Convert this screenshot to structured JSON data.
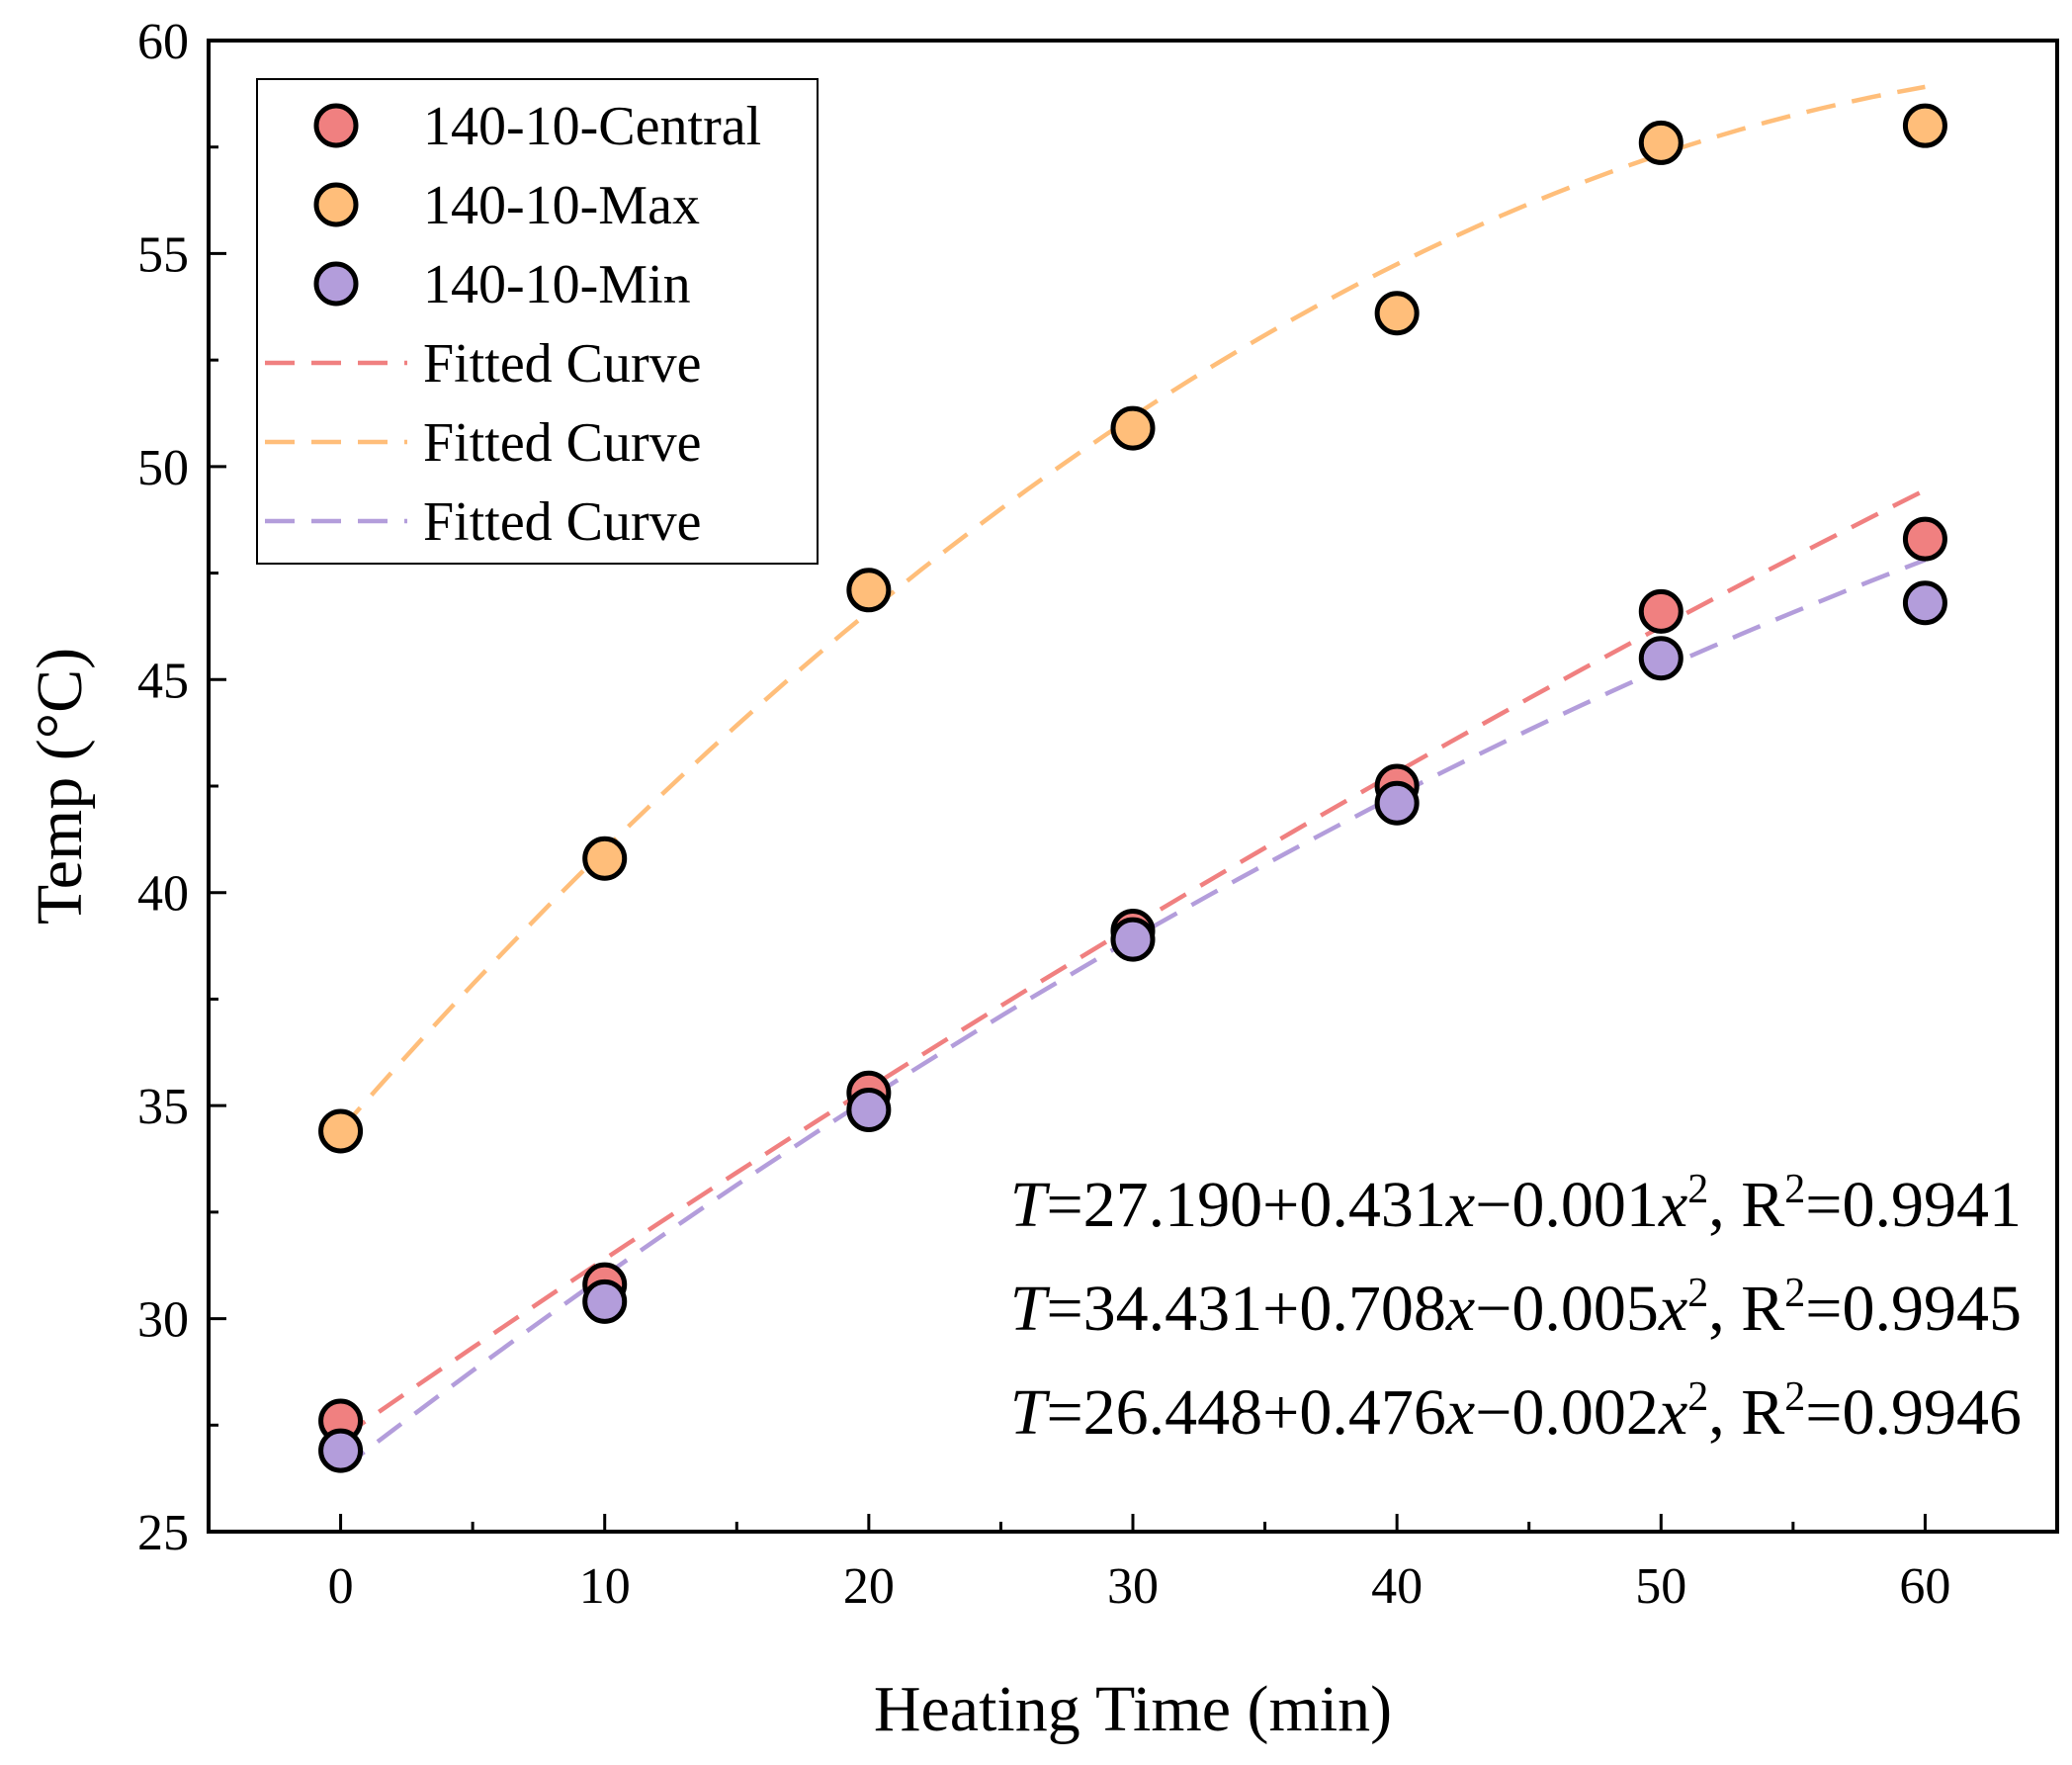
{
  "chart_data": {
    "type": "scatter",
    "xlabel": "Heating Time (min)",
    "ylabel": "Temp (°C)",
    "xlim": [
      -5,
      65
    ],
    "ylim": [
      25,
      60
    ],
    "x_ticks": [
      0,
      10,
      20,
      30,
      40,
      50,
      60
    ],
    "y_ticks": [
      25,
      30,
      35,
      40,
      45,
      50,
      55,
      60
    ],
    "grid": false,
    "legend_placement": "top-left",
    "series": [
      {
        "name": "140-10-Central",
        "color": "#F08080",
        "x": [
          0,
          10,
          20,
          30,
          40,
          50,
          60
        ],
        "y": [
          27.6,
          30.8,
          35.3,
          39.1,
          42.5,
          46.6,
          48.3
        ],
        "fit": {
          "name": "Fitted Curve",
          "a": 27.19,
          "b": 0.431,
          "c": -0.001
        }
      },
      {
        "name": "140-10-Max",
        "color": "#FFBE7A",
        "x": [
          0,
          10,
          20,
          30,
          40,
          50,
          60
        ],
        "y": [
          34.4,
          40.8,
          47.1,
          50.9,
          53.6,
          57.6,
          58.0
        ],
        "fit": {
          "name": "Fitted Curve",
          "a": 34.431,
          "b": 0.708,
          "c": -0.005
        }
      },
      {
        "name": "140-10-Min",
        "color": "#B39DDB",
        "x": [
          0,
          10,
          20,
          30,
          40,
          50,
          60
        ],
        "y": [
          26.9,
          30.4,
          34.9,
          38.9,
          42.1,
          45.5,
          46.8
        ],
        "fit": {
          "name": "Fitted Curve",
          "a": 26.448,
          "b": 0.476,
          "c": -0.002
        }
      }
    ],
    "annotations": [
      {
        "T": "T",
        "body": "=27.190+0.431",
        "x1": "x",
        "mid": "−0.001",
        "x2": "x",
        "sup": "2",
        "r": ", R",
        "rsup": "2",
        "rval": "=0.9941"
      },
      {
        "T": "T",
        "body": "=34.431+0.708",
        "x1": "x",
        "mid": "−0.005",
        "x2": "x",
        "sup": "2",
        "r": ", R",
        "rsup": "2",
        "rval": "=0.9945"
      },
      {
        "T": "T",
        "body": "=26.448+0.476",
        "x1": "x",
        "mid": "−0.002",
        "x2": "x",
        "sup": "2",
        "r": ", R",
        "rsup": "2",
        "rval": "=0.9946"
      }
    ]
  }
}
